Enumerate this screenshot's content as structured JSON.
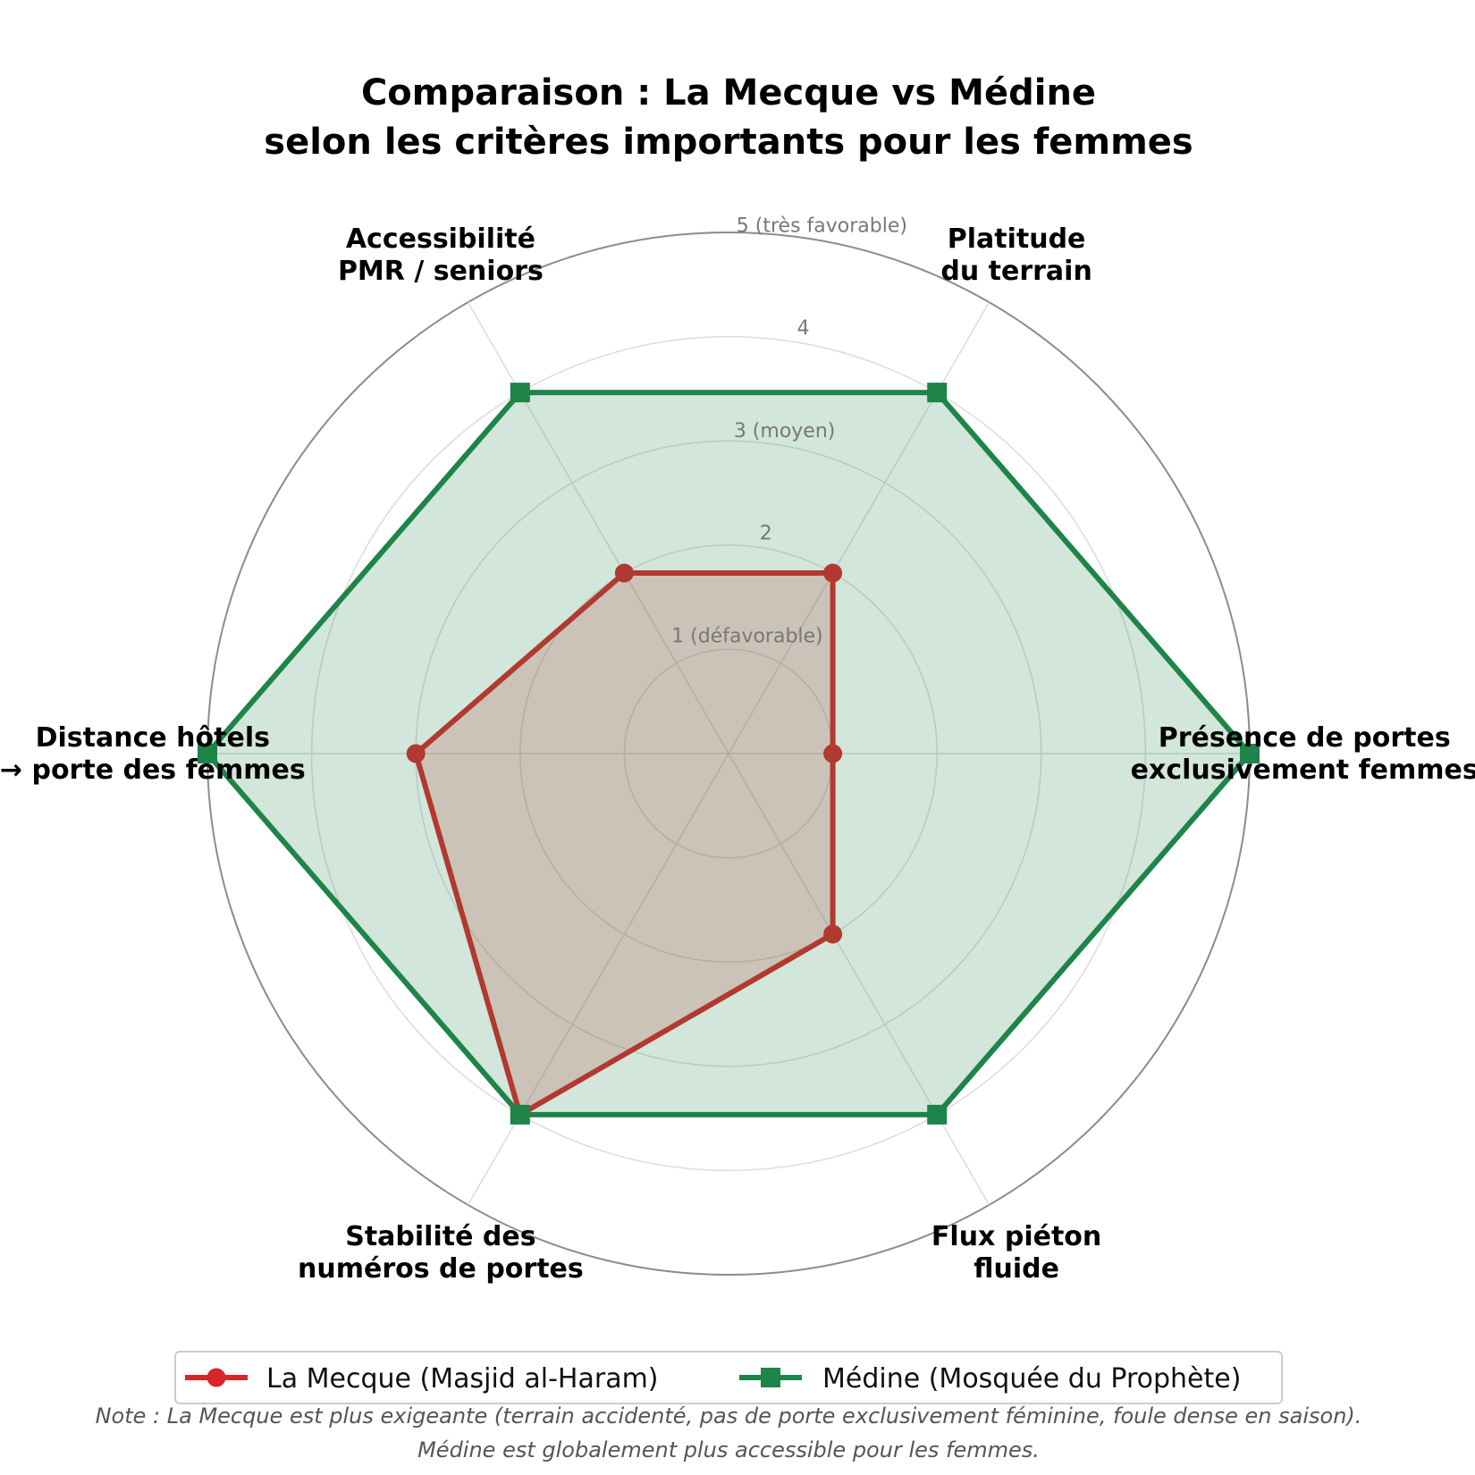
{
  "chart_data": {
    "type": "radar",
    "title": [
      "Comparaison : La Mecque vs Médine",
      "selon les critères importants pour les femmes"
    ],
    "categories": [
      [
        "Présence de portes",
        "exclusivement femmes"
      ],
      [
        "Platitude",
        "du terrain"
      ],
      [
        "Accessibilité",
        "PMR / seniors"
      ],
      [
        "Distance hôtels",
        "→ porte des femmes"
      ],
      [
        "Stabilité des",
        "numéros de portes"
      ],
      [
        "Flux piéton",
        "fluide"
      ]
    ],
    "rlim": [
      0,
      5
    ],
    "rticks": [
      1,
      2,
      3,
      4,
      5
    ],
    "rtick_labels": [
      "1 (défavorable)",
      "2",
      "3 (moyen)",
      "4",
      "5 (très favorable)"
    ],
    "grid": true,
    "series": [
      {
        "name": "La Mecque (Masjid al-Haram)",
        "values": [
          1,
          2,
          2,
          3,
          4,
          2
        ],
        "color": "#d62728",
        "fill": "#d62728",
        "marker": "circle"
      },
      {
        "name": "Médine (Mosquée du Prophète)",
        "values": [
          5,
          4,
          4,
          5,
          4,
          4
        ],
        "color": "#1e8449",
        "fill": "#1e8449",
        "marker": "square"
      }
    ],
    "legend_position": "bottom-center",
    "note": [
      "Note : La Mecque est plus exigeante (terrain accidenté, pas de porte exclusivement féminine, foule dense en saison).",
      "Médine est globalement plus accessible pour les femmes."
    ]
  }
}
